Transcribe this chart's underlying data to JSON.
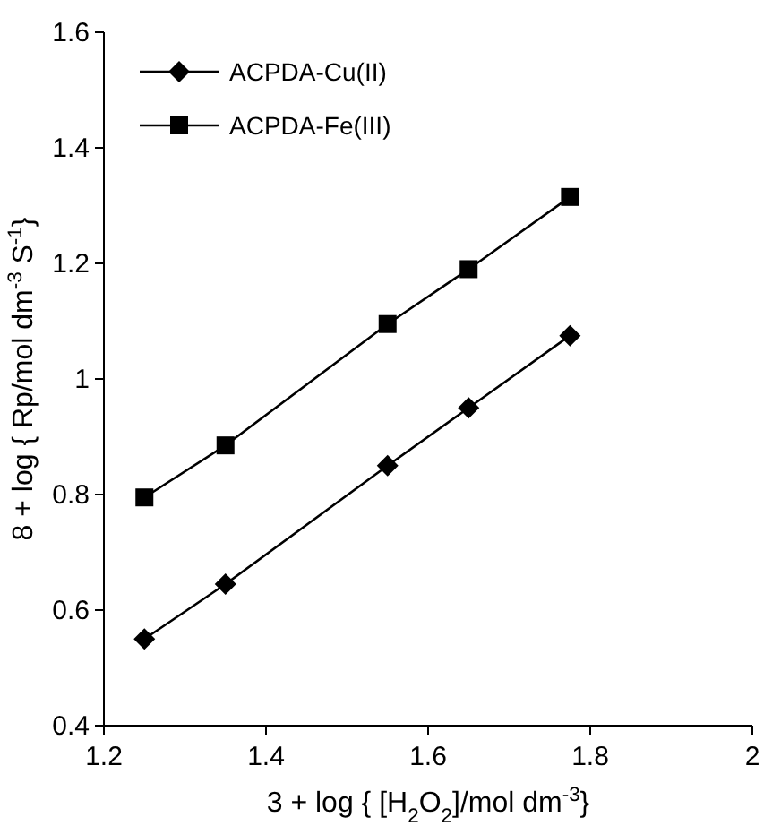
{
  "chart_data": {
    "type": "line",
    "xlabel": "3 + log { [H$_{2}$O$_{2}$]/mol dm$^{-3}$}",
    "ylabel": "8 + log { Rp/mol dm$^{-3}$ S$^{-1}$}",
    "x": [
      1.25,
      1.35,
      1.55,
      1.65,
      1.775
    ],
    "series": [
      {
        "name": "ACPDA-Cu(II)",
        "color": "#000000",
        "marker": "diamond",
        "values": [
          0.55,
          0.645,
          0.85,
          0.95,
          1.075
        ]
      },
      {
        "name": "ACPDA-Fe(III)",
        "color": "#000000",
        "marker": "square",
        "values": [
          0.795,
          0.885,
          1.095,
          1.19,
          1.315
        ]
      }
    ],
    "xlim": [
      1.2,
      2
    ],
    "xticks": [
      1.2,
      1.4,
      1.6,
      1.8,
      2
    ],
    "ylim": [
      0.4,
      1.6
    ],
    "yticks": [
      0.4,
      0.6,
      0.8,
      1,
      1.2,
      1.4,
      1.6
    ],
    "legend": "top left",
    "line_style": "solid",
    "grid": false
  }
}
